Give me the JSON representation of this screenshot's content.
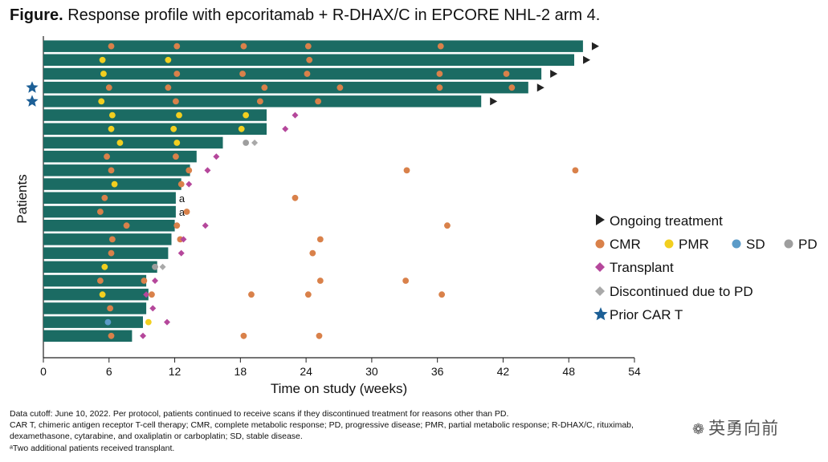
{
  "title": {
    "bold": "Figure.",
    "text": "Response profile with epcoritamab + R-DHAX/C in EPCORE NHL-2 arm 4."
  },
  "footnotes": [
    "Data cutoff: June 10, 2022. Per protocol, patients continued to receive scans if they discontinued treatment for reasons other than PD.",
    "CAR T, chimeric antigen receptor T-cell therapy; CMR, complete metabolic response; PD, progressive disease; PMR, partial metabolic response; R-DHAX/C, rituximab,",
    "dexamethasone, cytarabine, and oxaliplatin or carboplatin; SD, stable disease.",
    "ᵃTwo additional patients received transplant."
  ],
  "watermark": "英勇向前",
  "colors": {
    "bar": "#1b6b63",
    "ongoing": "#222222",
    "CMR": "#d9814a",
    "PMR": "#f2cf1f",
    "SD": "#5b9bc8",
    "PD": "#9e9e9e",
    "transplant": "#b5479b",
    "discontinued": "#a9a9a9",
    "car_t": "#1c5f96"
  },
  "legend": {
    "ongoing": "Ongoing treatment",
    "cmr": "CMR",
    "pmr": "PMR",
    "sd": "SD",
    "pd": "PD",
    "transplant": "Transplant",
    "discontinued": "Discontinued due to PD",
    "car_t": "Prior CAR T"
  },
  "chart_data": {
    "type": "bar",
    "orientation": "horizontal swimmer plot",
    "xlabel": "Time on study (weeks)",
    "ylabel": "Patients",
    "xlim": [
      0,
      54
    ],
    "xticks": [
      0,
      6,
      12,
      18,
      24,
      30,
      36,
      42,
      48,
      54
    ],
    "grid": false,
    "legend_position": "right",
    "patients": [
      {
        "duration": 49.3,
        "ongoing": true,
        "car_t": false,
        "note": "",
        "events": [
          {
            "t": 6.2,
            "type": "CMR"
          },
          {
            "t": 12.2,
            "type": "CMR"
          },
          {
            "t": 18.3,
            "type": "CMR"
          },
          {
            "t": 24.2,
            "type": "CMR"
          },
          {
            "t": 36.3,
            "type": "CMR"
          }
        ]
      },
      {
        "duration": 48.5,
        "ongoing": true,
        "car_t": false,
        "note": "",
        "events": [
          {
            "t": 5.4,
            "type": "PMR"
          },
          {
            "t": 11.4,
            "type": "PMR"
          },
          {
            "t": 24.3,
            "type": "CMR"
          }
        ]
      },
      {
        "duration": 45.5,
        "ongoing": true,
        "car_t": false,
        "note": "",
        "events": [
          {
            "t": 5.5,
            "type": "PMR"
          },
          {
            "t": 12.2,
            "type": "CMR"
          },
          {
            "t": 18.2,
            "type": "CMR"
          },
          {
            "t": 24.1,
            "type": "CMR"
          },
          {
            "t": 36.2,
            "type": "CMR"
          },
          {
            "t": 42.3,
            "type": "CMR"
          }
        ]
      },
      {
        "duration": 44.3,
        "ongoing": true,
        "car_t": true,
        "note": "",
        "events": [
          {
            "t": 6.0,
            "type": "CMR"
          },
          {
            "t": 11.4,
            "type": "CMR"
          },
          {
            "t": 20.2,
            "type": "CMR"
          },
          {
            "t": 27.1,
            "type": "CMR"
          },
          {
            "t": 36.2,
            "type": "CMR"
          },
          {
            "t": 42.8,
            "type": "CMR"
          }
        ]
      },
      {
        "duration": 40.0,
        "ongoing": true,
        "car_t": true,
        "note": "",
        "events": [
          {
            "t": 5.3,
            "type": "PMR"
          },
          {
            "t": 12.1,
            "type": "CMR"
          },
          {
            "t": 19.8,
            "type": "CMR"
          },
          {
            "t": 25.1,
            "type": "CMR"
          }
        ]
      },
      {
        "duration": 20.4,
        "ongoing": false,
        "car_t": false,
        "note": "",
        "events": [
          {
            "t": 6.3,
            "type": "PMR"
          },
          {
            "t": 12.4,
            "type": "PMR"
          },
          {
            "t": 18.5,
            "type": "PMR"
          },
          {
            "t": 23.0,
            "type": "Transplant"
          }
        ]
      },
      {
        "duration": 20.4,
        "ongoing": false,
        "car_t": false,
        "note": "",
        "events": [
          {
            "t": 6.2,
            "type": "PMR"
          },
          {
            "t": 11.9,
            "type": "PMR"
          },
          {
            "t": 18.1,
            "type": "PMR"
          },
          {
            "t": 22.1,
            "type": "Transplant"
          }
        ]
      },
      {
        "duration": 16.4,
        "ongoing": false,
        "car_t": false,
        "note": "",
        "events": [
          {
            "t": 7.0,
            "type": "PMR"
          },
          {
            "t": 12.2,
            "type": "PMR"
          },
          {
            "t": 18.5,
            "type": "PD"
          },
          {
            "t": 19.3,
            "type": "Discontinued"
          }
        ]
      },
      {
        "duration": 14.0,
        "ongoing": false,
        "car_t": false,
        "note": "",
        "events": [
          {
            "t": 5.8,
            "type": "CMR"
          },
          {
            "t": 12.1,
            "type": "CMR"
          },
          {
            "t": 15.8,
            "type": "Transplant"
          }
        ]
      },
      {
        "duration": 13.4,
        "ongoing": false,
        "car_t": false,
        "note": "",
        "events": [
          {
            "t": 6.2,
            "type": "CMR"
          },
          {
            "t": 13.3,
            "type": "CMR"
          },
          {
            "t": 15.0,
            "type": "Transplant"
          },
          {
            "t": 33.2,
            "type": "CMR"
          },
          {
            "t": 48.6,
            "type": "CMR"
          }
        ]
      },
      {
        "duration": 12.6,
        "ongoing": false,
        "car_t": false,
        "note": "",
        "events": [
          {
            "t": 6.5,
            "type": "PMR"
          },
          {
            "t": 12.6,
            "type": "CMR"
          },
          {
            "t": 13.3,
            "type": "Transplant"
          }
        ]
      },
      {
        "duration": 12.1,
        "ongoing": false,
        "car_t": false,
        "note": "a",
        "events": [
          {
            "t": 5.6,
            "type": "CMR"
          },
          {
            "t": 23.0,
            "type": "CMR"
          }
        ]
      },
      {
        "duration": 12.1,
        "ongoing": false,
        "car_t": false,
        "note": "a",
        "events": [
          {
            "t": 5.2,
            "type": "CMR"
          },
          {
            "t": 13.1,
            "type": "CMR"
          }
        ]
      },
      {
        "duration": 12.0,
        "ongoing": false,
        "car_t": false,
        "note": "",
        "events": [
          {
            "t": 7.6,
            "type": "CMR"
          },
          {
            "t": 12.2,
            "type": "CMR"
          },
          {
            "t": 14.8,
            "type": "Transplant"
          },
          {
            "t": 36.9,
            "type": "CMR"
          }
        ]
      },
      {
        "duration": 11.7,
        "ongoing": false,
        "car_t": false,
        "note": "",
        "events": [
          {
            "t": 6.3,
            "type": "CMR"
          },
          {
            "t": 12.5,
            "type": "CMR"
          },
          {
            "t": 12.8,
            "type": "Transplant"
          },
          {
            "t": 25.3,
            "type": "CMR"
          }
        ]
      },
      {
        "duration": 11.4,
        "ongoing": false,
        "car_t": false,
        "note": "",
        "events": [
          {
            "t": 6.2,
            "type": "CMR"
          },
          {
            "t": 12.6,
            "type": "Transplant"
          },
          {
            "t": 24.6,
            "type": "CMR"
          }
        ]
      },
      {
        "duration": 10.4,
        "ongoing": false,
        "car_t": false,
        "note": "",
        "events": [
          {
            "t": 5.6,
            "type": "PMR"
          },
          {
            "t": 10.2,
            "type": "PD"
          },
          {
            "t": 10.9,
            "type": "Discontinued"
          }
        ]
      },
      {
        "duration": 9.4,
        "ongoing": false,
        "car_t": false,
        "note": "",
        "events": [
          {
            "t": 5.2,
            "type": "CMR"
          },
          {
            "t": 9.2,
            "type": "CMR"
          },
          {
            "t": 10.2,
            "type": "Transplant"
          },
          {
            "t": 25.3,
            "type": "CMR"
          },
          {
            "t": 33.1,
            "type": "CMR"
          }
        ]
      },
      {
        "duration": 9.6,
        "ongoing": false,
        "car_t": false,
        "note": "",
        "events": [
          {
            "t": 5.4,
            "type": "PMR"
          },
          {
            "t": 9.4,
            "type": "Transplant"
          },
          {
            "t": 9.9,
            "type": "CMR"
          },
          {
            "t": 19.0,
            "type": "CMR"
          },
          {
            "t": 24.2,
            "type": "CMR"
          },
          {
            "t": 36.4,
            "type": "CMR"
          }
        ]
      },
      {
        "duration": 9.4,
        "ongoing": false,
        "car_t": false,
        "note": "",
        "events": [
          {
            "t": 6.1,
            "type": "CMR"
          },
          {
            "t": 10.0,
            "type": "Transplant"
          }
        ]
      },
      {
        "duration": 9.1,
        "ongoing": false,
        "car_t": false,
        "note": "",
        "events": [
          {
            "t": 5.9,
            "type": "SD"
          },
          {
            "t": 9.6,
            "type": "PMR"
          },
          {
            "t": 11.3,
            "type": "Transplant"
          }
        ]
      },
      {
        "duration": 8.1,
        "ongoing": false,
        "car_t": false,
        "note": "",
        "events": [
          {
            "t": 6.2,
            "type": "CMR"
          },
          {
            "t": 9.1,
            "type": "Transplant"
          },
          {
            "t": 18.3,
            "type": "CMR"
          },
          {
            "t": 25.2,
            "type": "CMR"
          }
        ]
      }
    ]
  }
}
